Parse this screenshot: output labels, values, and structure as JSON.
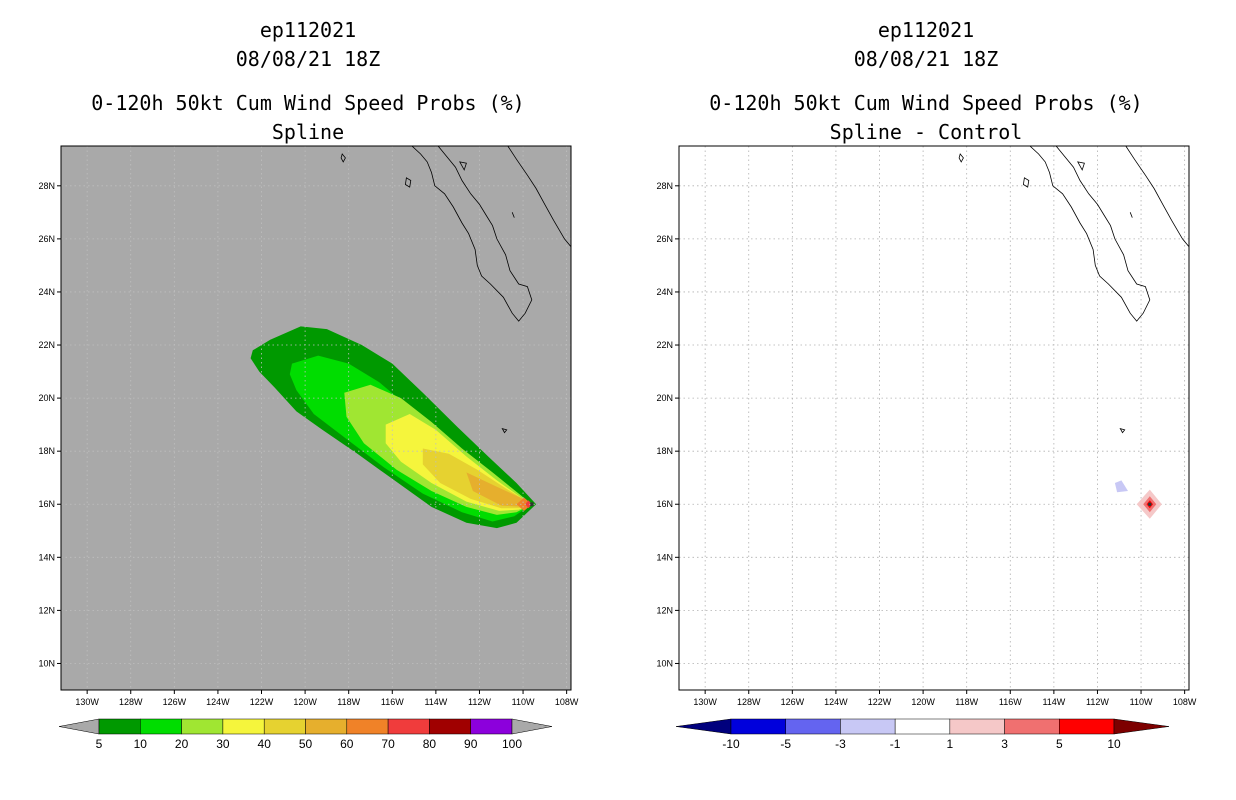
{
  "chart_data": [
    {
      "type": "heatmap",
      "storm_id": "ep112021",
      "datetime": "08/08/21 18Z",
      "title": "0-120h 50kt Cum Wind Speed Probs (%)",
      "subtitle": "Spline",
      "xlim": [
        -131.2,
        -107.8
      ],
      "ylim": [
        9,
        29.5
      ],
      "xticks": [
        -130,
        -128,
        -126,
        -124,
        -122,
        -120,
        -118,
        -116,
        -114,
        -112,
        -110,
        -108
      ],
      "xtick_labels": [
        "130W",
        "128W",
        "126W",
        "124W",
        "122W",
        "120W",
        "118W",
        "116W",
        "114W",
        "112W",
        "110W",
        "108W"
      ],
      "yticks": [
        10,
        12,
        14,
        16,
        18,
        20,
        22,
        24,
        26,
        28
      ],
      "ytick_labels": [
        "10N",
        "12N",
        "14N",
        "16N",
        "18N",
        "20N",
        "22N",
        "24N",
        "26N",
        "28N"
      ],
      "background_color": "#a9a9a9",
      "colorbar": {
        "labels": [
          "5",
          "10",
          "20",
          "30",
          "40",
          "50",
          "60",
          "70",
          "80",
          "90",
          "100"
        ],
        "colors": [
          "#009900",
          "#00dd00",
          "#a0e632",
          "#f5f53c",
          "#e6d230",
          "#e6af2d",
          "#f08228",
          "#f03c3c",
          "#a00000",
          "#8c00dc"
        ],
        "end_color": "#a9a9a9"
      },
      "storm_center": {
        "lon": -109.6,
        "lat": 16.0
      },
      "prob_contours": [
        {
          "level": 5,
          "color": "#009900",
          "points": [
            [
              -122.4,
              21.8
            ],
            [
              -121.6,
              22.2
            ],
            [
              -120.2,
              22.7
            ],
            [
              -119.0,
              22.6
            ],
            [
              -117.4,
              22.0
            ],
            [
              -116.0,
              21.3
            ],
            [
              -114.6,
              20.2
            ],
            [
              -113.0,
              18.9
            ],
            [
              -111.6,
              17.8
            ],
            [
              -110.3,
              16.8
            ],
            [
              -109.4,
              16.0
            ],
            [
              -110.3,
              15.3
            ],
            [
              -111.2,
              15.1
            ],
            [
              -112.6,
              15.3
            ],
            [
              -114.2,
              15.9
            ],
            [
              -115.9,
              16.9
            ],
            [
              -117.6,
              17.9
            ],
            [
              -119.2,
              18.8
            ],
            [
              -120.4,
              19.5
            ],
            [
              -121.4,
              20.4
            ],
            [
              -122.1,
              21.0
            ],
            [
              -122.5,
              21.5
            ]
          ]
        },
        {
          "level": 10,
          "color": "#00dd00",
          "points": [
            [
              -120.6,
              21.3
            ],
            [
              -119.4,
              21.6
            ],
            [
              -118.0,
              21.3
            ],
            [
              -116.6,
              20.6
            ],
            [
              -115.0,
              19.5
            ],
            [
              -113.4,
              18.4
            ],
            [
              -112.0,
              17.5
            ],
            [
              -110.5,
              16.6
            ],
            [
              -109.6,
              16.0
            ],
            [
              -110.4,
              15.55
            ],
            [
              -111.4,
              15.35
            ],
            [
              -112.8,
              15.7
            ],
            [
              -114.6,
              16.4
            ],
            [
              -116.4,
              17.4
            ],
            [
              -118.0,
              18.4
            ],
            [
              -119.6,
              19.4
            ],
            [
              -120.4,
              20.3
            ],
            [
              -120.7,
              20.9
            ]
          ]
        },
        {
          "level": 20,
          "color": "#a0e632",
          "points": [
            [
              -118.2,
              20.2
            ],
            [
              -117.0,
              20.5
            ],
            [
              -115.6,
              20.0
            ],
            [
              -114.2,
              19.1
            ],
            [
              -112.8,
              18.1
            ],
            [
              -111.4,
              17.2
            ],
            [
              -110.2,
              16.4
            ],
            [
              -109.6,
              16.0
            ],
            [
              -110.3,
              15.7
            ],
            [
              -111.2,
              15.6
            ],
            [
              -112.6,
              15.9
            ],
            [
              -114.2,
              16.5
            ],
            [
              -115.8,
              17.3
            ],
            [
              -117.3,
              18.3
            ],
            [
              -118.1,
              19.3
            ]
          ]
        },
        {
          "level": 30,
          "color": "#f5f53c",
          "points": [
            [
              -116.3,
              19.0
            ],
            [
              -115.2,
              19.4
            ],
            [
              -114.0,
              18.8
            ],
            [
              -112.6,
              17.8
            ],
            [
              -111.2,
              16.9
            ],
            [
              -110.0,
              16.2
            ],
            [
              -109.6,
              16.0
            ],
            [
              -110.2,
              15.8
            ],
            [
              -111.1,
              15.75
            ],
            [
              -112.6,
              16.1
            ],
            [
              -114.2,
              16.8
            ],
            [
              -115.6,
              17.6
            ],
            [
              -116.3,
              18.3
            ]
          ]
        },
        {
          "level": 40,
          "color": "#e6d230",
          "points": [
            [
              -114.6,
              18.1
            ],
            [
              -113.4,
              17.9
            ],
            [
              -112.1,
              17.3
            ],
            [
              -110.8,
              16.6
            ],
            [
              -109.8,
              16.1
            ],
            [
              -109.6,
              16.0
            ],
            [
              -110.1,
              15.85
            ],
            [
              -111.0,
              15.85
            ],
            [
              -112.4,
              16.2
            ],
            [
              -113.8,
              16.8
            ],
            [
              -114.6,
              17.5
            ]
          ]
        },
        {
          "level": 50,
          "color": "#e6af2d",
          "points": [
            [
              -112.6,
              17.2
            ],
            [
              -111.3,
              16.7
            ],
            [
              -110.0,
              16.2
            ],
            [
              -109.7,
              16.05
            ],
            [
              -110.0,
              15.9
            ],
            [
              -111.0,
              15.95
            ],
            [
              -112.3,
              16.5
            ]
          ]
        },
        {
          "level": 60,
          "color": "#f08228",
          "points": [
            [
              -109.95,
              16.25
            ],
            [
              -109.6,
              16.0
            ],
            [
              -109.95,
              15.75
            ],
            [
              -110.3,
              16.0
            ]
          ]
        },
        {
          "level": 70,
          "color": "#f03c3c",
          "points": [
            [
              -109.75,
              16.15
            ],
            [
              -109.6,
              16.0
            ],
            [
              -109.75,
              15.85
            ],
            [
              -109.9,
              16.0
            ]
          ]
        }
      ]
    },
    {
      "type": "heatmap",
      "storm_id": "ep112021",
      "datetime": "08/08/21 18Z",
      "title": "0-120h 50kt Cum Wind Speed Probs (%)",
      "subtitle": "Spline - Control",
      "xlim": [
        -131.2,
        -107.8
      ],
      "ylim": [
        9,
        29.5
      ],
      "xticks": [
        -130,
        -128,
        -126,
        -124,
        -122,
        -120,
        -118,
        -116,
        -114,
        -112,
        -110,
        -108
      ],
      "xtick_labels": [
        "130W",
        "128W",
        "126W",
        "124W",
        "122W",
        "120W",
        "118W",
        "116W",
        "114W",
        "112W",
        "110W",
        "108W"
      ],
      "yticks": [
        10,
        12,
        14,
        16,
        18,
        20,
        22,
        24,
        26,
        28
      ],
      "ytick_labels": [
        "10N",
        "12N",
        "14N",
        "16N",
        "18N",
        "20N",
        "22N",
        "24N",
        "26N",
        "28N"
      ],
      "background_color": "#ffffff",
      "grid": true,
      "colorbar": {
        "labels": [
          "-10",
          "-5",
          "-3",
          "-1",
          "1",
          "3",
          "5",
          "10"
        ],
        "colors": [
          "#0000dc",
          "#6464f0",
          "#c8c8f5",
          "#ffffff",
          "#f5c8c8",
          "#f07070",
          "#ff0000"
        ],
        "low_end_color": "#00007d",
        "high_end_color": "#7d0000"
      },
      "diff_contours": [
        {
          "level": -1,
          "color": "#c8c8f5",
          "points": [
            [
              -110.9,
              16.9
            ],
            [
              -110.6,
              16.5
            ],
            [
              -111.1,
              16.45
            ],
            [
              -111.2,
              16.8
            ]
          ]
        },
        {
          "level": 1,
          "color": "#f5c8c8",
          "points": [
            [
              -109.6,
              16.55
            ],
            [
              -109.05,
              16.0
            ],
            [
              -109.6,
              15.45
            ],
            [
              -110.2,
              16.0
            ]
          ]
        },
        {
          "level": 3,
          "color": "#f07070",
          "points": [
            [
              -109.6,
              16.3
            ],
            [
              -109.3,
              16.0
            ],
            [
              -109.6,
              15.7
            ],
            [
              -109.9,
              16.0
            ]
          ]
        },
        {
          "level": 5,
          "color": "#ff0000",
          "points": [
            [
              -109.6,
              16.15
            ],
            [
              -109.45,
              16.0
            ],
            [
              -109.6,
              15.85
            ],
            [
              -109.75,
              16.0
            ]
          ]
        }
      ]
    }
  ]
}
